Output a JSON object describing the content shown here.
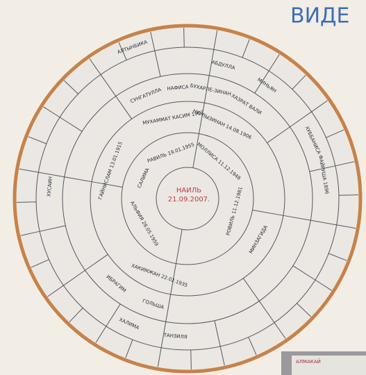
{
  "header": {
    "title": "ВИДЕ"
  },
  "chart": {
    "center": {
      "name": "НАИЛЬ",
      "date": "21.09.2007."
    },
    "labels": [
      "РАВИЛЬ 19.01.1955",
      "МОЛЛИСА 11.12.1948",
      "РОВИЛЬ 11.12.1981",
      "АЛЬФИЯ 28.05.1959",
      "САЛИМА",
      "МУХАММАТ КАСИМ 1902",
      "НУРЛЫЗИНАН 14.08.1906",
      "ХАКИМЖАН 22.02.1935",
      "МИНЗАГИДА",
      "ГАЙНИСЛАМ 13.01.1915",
      "СУНГАТУЛЛА",
      "НАФИСА",
      "БУХАРЛЕ-ЗИНАН",
      "ХАЗРАТ ВАЛИ",
      "ИБРАГИМ",
      "ГОЛЬША",
      "ТАНЗИЛЯ",
      "ФАЙРУША 1896",
      "ХУББАНИСА",
      "АБДУЛЛА",
      "МИНЬЯН",
      "ХУСАИН",
      "ХАЛИМА",
      "АЛТЫНБИКА"
    ]
  },
  "inset": {
    "label": "АЛМАКАЙ"
  }
}
